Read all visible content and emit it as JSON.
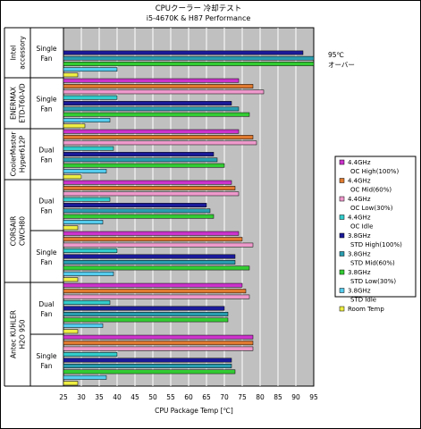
{
  "chart_data": {
    "type": "bar",
    "orientation": "horizontal",
    "title": "CPUクーラー 冷却テスト",
    "subtitle": "i5-4670K & H87 Performance",
    "xlabel": "CPU Package Temp [℃]",
    "xlim": [
      25,
      95
    ],
    "xticks": [
      25,
      30,
      35,
      40,
      45,
      50,
      55,
      60,
      65,
      70,
      75,
      80,
      85,
      90,
      95
    ],
    "grid": true,
    "legend_position": "right",
    "annotation": {
      "line1": "95℃",
      "line2": "オーバー"
    },
    "groups": [
      {
        "product": "Intel accessory",
        "product_lines": [
          "Intel",
          "accessory"
        ],
        "fan_lines": [
          "Single",
          "Fan"
        ]
      },
      {
        "product": "ENERMAX ETD-T60-VD",
        "product_lines": [
          "ENERMAX",
          "ETD-T60-VD"
        ],
        "fan_lines": [
          "Single",
          "Fan"
        ]
      },
      {
        "product": "CoolerMaster Hyper612P",
        "product_lines": [
          "CoolerMaster",
          "Hyper612P"
        ],
        "fan_lines": [
          "Dual",
          "Fan"
        ]
      },
      {
        "product": "CORSAIR CWCH80",
        "product_lines": [
          "CORSAIR",
          "CWCH80"
        ],
        "fan_lines": [
          "Dual",
          "Fan"
        ]
      },
      {
        "product": "CORSAIR CWCH80",
        "product_lines": [],
        "fan_lines": [
          "Single",
          "Fan"
        ]
      },
      {
        "product": "Antec KUHLER H2O 950",
        "product_lines": [
          "Antec KUHLER",
          "H2O 950"
        ],
        "fan_lines": [
          "Dual",
          "Fan"
        ]
      },
      {
        "product": "Antec KUHLER H2O 950",
        "product_lines": [],
        "fan_lines": [
          "Single",
          "Fan"
        ]
      }
    ],
    "series": [
      {
        "name": "4.4GHz OC High(100%)",
        "legend_lines": [
          "4.4GHz",
          "OC High(100%)"
        ],
        "color": "#cc33cc",
        "values": [
          null,
          74,
          74,
          72,
          74,
          75,
          78
        ]
      },
      {
        "name": "4.4GHz OC Mid(60%)",
        "legend_lines": [
          "4.4GHz",
          "OC Mid(60%)"
        ],
        "color": "#e07a30",
        "values": [
          null,
          78,
          78,
          73,
          75,
          76,
          78
        ]
      },
      {
        "name": "4.4GHz OC Low(30%)",
        "legend_lines": [
          "4.4GHz",
          "OC Low(30%)"
        ],
        "color": "#ee99cc",
        "values": [
          null,
          81,
          79,
          74,
          78,
          77,
          78
        ]
      },
      {
        "name": "4.4GHz OC Idle",
        "legend_lines": [
          "4.4GHz",
          "OC Idle"
        ],
        "color": "#33cccc",
        "values": [
          null,
          40,
          39,
          38,
          40,
          38,
          40
        ]
      },
      {
        "name": "3.8GHz STD High(100%)",
        "legend_lines": [
          "3.8GHz",
          "STD High(100%)"
        ],
        "color": "#1a1a99",
        "values": [
          92,
          72,
          67,
          65,
          73,
          70,
          72
        ]
      },
      {
        "name": "3.8GHz STD Mid(60%)",
        "legend_lines": [
          "3.8GHz",
          "STD Mid(60%)"
        ],
        "color": "#2a9db0",
        "values": [
          95,
          74,
          68,
          66,
          73,
          71,
          72
        ]
      },
      {
        "name": "3.8GHz STD Low(30%)",
        "legend_lines": [
          "3.8GHz",
          "STD Low(30%)"
        ],
        "color": "#33cc33",
        "values": [
          95,
          77,
          70,
          67,
          77,
          71,
          73
        ]
      },
      {
        "name": "3.8GHz STD Idle",
        "legend_lines": [
          "3.8GHz",
          "STD Idle"
        ],
        "color": "#55ccee",
        "values": [
          40,
          38,
          37,
          36,
          39,
          36,
          37
        ]
      },
      {
        "name": "Room Temp",
        "legend_lines": [
          "Room Temp"
        ],
        "color": "#eeee44",
        "values": [
          29,
          31,
          30,
          29,
          29,
          29,
          29
        ]
      }
    ]
  }
}
